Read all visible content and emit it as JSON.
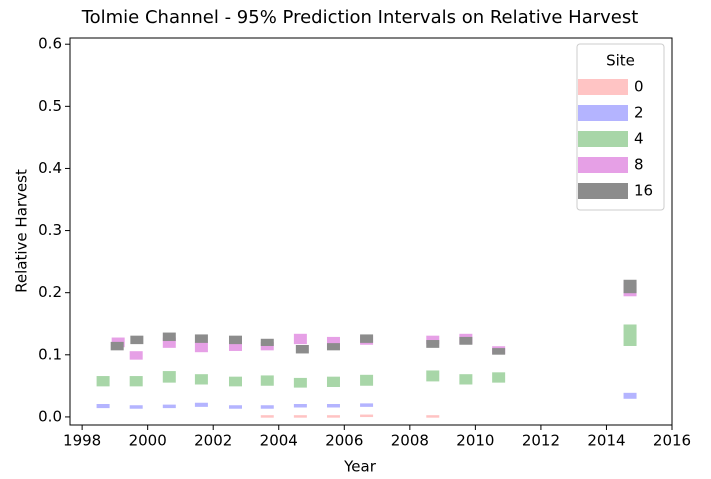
{
  "chart_data": {
    "type": "interval",
    "title": "Tolmie Channel - 95% Prediction Intervals on Relative Harvest",
    "xlabel": "Year",
    "ylabel": "Relative Harvest",
    "xlim": [
      1997.63,
      2016
    ],
    "ylim": [
      -0.013,
      0.61
    ],
    "xticks": [
      1998,
      2000,
      2002,
      2004,
      2006,
      2008,
      2010,
      2012,
      2014,
      2016
    ],
    "yticks": [
      {
        "value": 0,
        "label": "0.0"
      },
      {
        "value": 0.1,
        "label": "0.1"
      },
      {
        "value": 0.2,
        "label": "0.2"
      },
      {
        "value": 0.3,
        "label": "0.3"
      },
      {
        "value": 0.4,
        "label": "0.4"
      },
      {
        "value": 0.5,
        "label": "0.5"
      },
      {
        "value": 0.6,
        "label": "0.6"
      }
    ],
    "legend_title": "Site",
    "legend": "upper right",
    "series": [
      {
        "name": "0",
        "color": "#ffc4c4",
        "x": [
          2003.65,
          2004.66,
          2005.67,
          2006.68,
          2008.7
        ],
        "low": [
          0,
          0,
          0,
          0.001,
          0
        ],
        "high": [
          0.002,
          0.002,
          0.002,
          0.003,
          0.002
        ]
      },
      {
        "name": "2",
        "color": "#b4b4ff",
        "x": [
          1998.64,
          1999.65,
          2000.66,
          2001.64,
          2002.68,
          2003.65,
          2004.66,
          2005.67,
          2006.68,
          2014.72
        ],
        "low": [
          0.015,
          0.014,
          0.015,
          0.017,
          0.014,
          0.014,
          0.016,
          0.016,
          0.017,
          0.03
        ],
        "high": [
          0.02,
          0.018,
          0.019,
          0.022,
          0.018,
          0.018,
          0.02,
          0.02,
          0.021,
          0.038
        ]
      },
      {
        "name": "4",
        "color": "#a8d6a8",
        "x": [
          1998.64,
          1999.65,
          2000.66,
          2001.64,
          2002.68,
          2003.65,
          2004.66,
          2005.67,
          2006.68,
          2008.7,
          2009.71,
          2010.71,
          2014.72
        ],
        "low": [
          0.05,
          0.05,
          0.056,
          0.053,
          0.05,
          0.051,
          0.048,
          0.049,
          0.051,
          0.058,
          0.053,
          0.056,
          0.115
        ],
        "high": [
          0.065,
          0.065,
          0.073,
          0.068,
          0.064,
          0.066,
          0.062,
          0.064,
          0.067,
          0.074,
          0.068,
          0.071,
          0.148
        ]
      },
      {
        "name": "8",
        "color": "#e6a0e6",
        "x": [
          1999.1,
          1999.65,
          2000.66,
          2001.64,
          2002.68,
          2003.65,
          2004.66,
          2005.67,
          2006.68,
          2008.7,
          2009.71,
          2010.71,
          2014.72
        ],
        "low": [
          0.113,
          0.093,
          0.112,
          0.105,
          0.107,
          0.108,
          0.118,
          0.113,
          0.117,
          0.118,
          0.118,
          0.102,
          0.195
        ],
        "high": [
          0.127,
          0.105,
          0.127,
          0.12,
          0.12,
          0.12,
          0.133,
          0.128,
          0.13,
          0.13,
          0.133,
          0.113,
          0.215
        ]
      },
      {
        "name": "16",
        "color": "#8c8c8c",
        "x": [
          1999.07,
          1999.67,
          2000.66,
          2001.64,
          2002.68,
          2003.65,
          2004.72,
          2005.67,
          2006.68,
          2008.7,
          2009.71,
          2010.71,
          2014.72
        ],
        "low": [
          0.108,
          0.118,
          0.123,
          0.12,
          0.118,
          0.115,
          0.103,
          0.108,
          0.12,
          0.112,
          0.117,
          0.101,
          0.2
        ],
        "high": [
          0.12,
          0.13,
          0.135,
          0.132,
          0.13,
          0.125,
          0.115,
          0.118,
          0.132,
          0.123,
          0.128,
          0.11,
          0.22
        ]
      }
    ]
  }
}
